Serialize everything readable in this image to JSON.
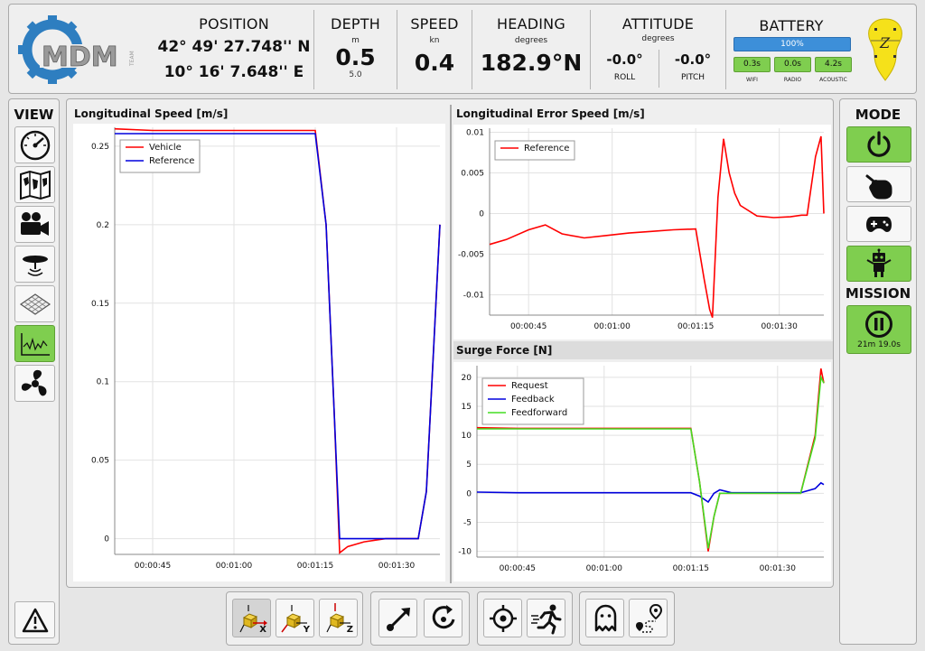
{
  "header": {
    "position": {
      "title": "POSITION",
      "lat": "42° 49' 27.748'' N",
      "lon": "10° 16' 7.648'' E"
    },
    "depth": {
      "title": "DEPTH",
      "unit": "m",
      "value": "0.5",
      "sub": "5.0"
    },
    "speed": {
      "title": "SPEED",
      "unit": "kn",
      "value": "0.4"
    },
    "heading": {
      "title": "HEADING",
      "unit": "degrees",
      "value": "182.9°N"
    },
    "attitude": {
      "title": "ATTITUDE",
      "unit": "degrees",
      "roll_value": "-0.0°",
      "roll_label": "ROLL",
      "pitch_value": "-0.0°",
      "pitch_label": "PITCH"
    },
    "battery": {
      "title": "BATTERY",
      "percent_label": "100%",
      "level": 1.0,
      "comms": [
        {
          "value": "0.3s",
          "label": "WIFI"
        },
        {
          "value": "0.0s",
          "label": "RADIO"
        },
        {
          "value": "4.2s",
          "label": "ACOUSTIC"
        }
      ]
    },
    "logo_text": "MDM",
    "logo_subtext": "TEAM"
  },
  "left_panel": {
    "title": "VIEW",
    "buttons": [
      {
        "icon": "speedometer-icon",
        "active": false
      },
      {
        "icon": "map-icon",
        "active": false
      },
      {
        "icon": "video-camera-icon",
        "active": false
      },
      {
        "icon": "sonar-icon",
        "active": false
      },
      {
        "icon": "terrain-grid-icon",
        "active": false
      },
      {
        "icon": "chart-icon",
        "active": true
      },
      {
        "icon": "propeller-icon",
        "active": false
      }
    ],
    "alert_icon": "warning-icon"
  },
  "right_panel": {
    "mode_title": "MODE",
    "mode_buttons": [
      {
        "icon": "power-icon",
        "active": true
      },
      {
        "icon": "hand-icon",
        "active": false
      },
      {
        "icon": "gamepad-icon",
        "active": false
      },
      {
        "icon": "robot-icon",
        "active": true
      }
    ],
    "mission_title": "MISSION",
    "mission_time": "21m 19.0s"
  },
  "charts": {
    "long_speed_title": "Longitudinal Speed [m/s]",
    "long_error_title": "Longitudinal Error Speed [m/s]",
    "surge_title": "Surge Force [N]"
  },
  "chart_data": [
    {
      "type": "line",
      "title": "Longitudinal Speed [m/s]",
      "x_ticks": [
        "00:00:45",
        "00:01:00",
        "00:01:15",
        "00:01:30"
      ],
      "y_ticks": [
        "0",
        "0.05",
        "0.1",
        "0.15",
        "0.2",
        "0.25"
      ],
      "ylim": [
        -0.01,
        0.262
      ],
      "xlim": [
        38,
        98
      ],
      "series": [
        {
          "name": "Vehicle",
          "color": "#ff0000",
          "x": [
            38,
            45,
            55,
            65,
            75,
            77,
            78.5,
            79.5,
            81,
            84,
            88,
            92,
            94,
            95.5,
            98
          ],
          "y": [
            0.261,
            0.26,
            0.26,
            0.26,
            0.26,
            0.2,
            0.08,
            -0.009,
            -0.005,
            -0.002,
            0,
            0,
            0,
            0.03,
            0.2
          ]
        },
        {
          "name": "Reference",
          "color": "#0000dd",
          "x": [
            38,
            45,
            55,
            65,
            75,
            77,
            78.5,
            79.5,
            81,
            84,
            88,
            92,
            94,
            95.5,
            98
          ],
          "y": [
            0.258,
            0.258,
            0.258,
            0.258,
            0.258,
            0.2,
            0.08,
            0.0,
            0.0,
            0.0,
            0.0,
            0.0,
            0.0,
            0.03,
            0.2
          ]
        }
      ]
    },
    {
      "type": "line",
      "title": "Longitudinal Error Speed [m/s]",
      "x_ticks": [
        "00:00:45",
        "00:01:00",
        "00:01:15",
        "00:01:30"
      ],
      "y_ticks": [
        "-0.01",
        "-0.005",
        "0",
        "0.005",
        "0.01"
      ],
      "ylim": [
        -0.0125,
        0.0105
      ],
      "xlim": [
        38,
        98
      ],
      "series": [
        {
          "name": "Reference",
          "color": "#ff0000",
          "x": [
            38,
            41,
            45,
            48,
            51,
            55,
            59,
            63,
            67,
            71,
            75,
            76.5,
            77.5,
            78,
            79,
            80,
            81,
            82,
            83,
            86,
            89,
            92,
            94,
            95,
            96.5,
            97.5,
            98
          ],
          "y": [
            -0.0038,
            -0.0032,
            -0.002,
            -0.0014,
            -0.0025,
            -0.003,
            -0.0027,
            -0.0024,
            -0.0022,
            -0.002,
            -0.0019,
            -0.008,
            -0.0118,
            -0.0128,
            0.002,
            0.0092,
            0.005,
            0.0025,
            0.001,
            -0.0003,
            -0.0005,
            -0.0004,
            -0.0002,
            -0.0002,
            0.007,
            0.0095,
            0.0
          ]
        }
      ]
    },
    {
      "type": "line",
      "title": "Surge Force [N]",
      "x_ticks": [
        "00:00:45",
        "00:01:00",
        "00:01:15",
        "00:01:30"
      ],
      "y_ticks": [
        "-10",
        "-5",
        "0",
        "5",
        "10",
        "15",
        "20"
      ],
      "ylim": [
        -11,
        22
      ],
      "xlim": [
        38,
        98
      ],
      "series": [
        {
          "name": "Request",
          "color": "#ff0000",
          "x": [
            38,
            45,
            55,
            65,
            75,
            76.5,
            78,
            79,
            80,
            82,
            86,
            92,
            94,
            96.5,
            97.5,
            98
          ],
          "y": [
            11.3,
            11.2,
            11.2,
            11.2,
            11.2,
            2,
            -10,
            -4,
            0,
            0,
            0,
            0,
            0,
            10,
            21.5,
            19
          ]
        },
        {
          "name": "Feedback",
          "color": "#0000dd",
          "x": [
            38,
            45,
            55,
            65,
            75,
            76.5,
            78,
            79,
            80,
            82,
            86,
            92,
            94,
            96.5,
            97.5,
            98
          ],
          "y": [
            0.2,
            0.1,
            0.1,
            0.1,
            0.1,
            -0.5,
            -1.5,
            0,
            0.6,
            0.1,
            0.1,
            0.1,
            0.1,
            0.8,
            1.8,
            1.5
          ]
        },
        {
          "name": "Feedforward",
          "color": "#44dd22",
          "x": [
            38,
            45,
            55,
            65,
            75,
            76.5,
            78,
            79,
            80,
            82,
            86,
            92,
            94,
            96.5,
            97.5,
            98
          ],
          "y": [
            11.1,
            11.1,
            11.1,
            11.1,
            11.1,
            2,
            -9.5,
            -4,
            0,
            0,
            0,
            0,
            0,
            9.5,
            20,
            19
          ]
        }
      ]
    }
  ],
  "toolbar": {
    "axis_labels": [
      "X",
      "Y",
      "Z"
    ],
    "buttons": [
      "move-x-icon",
      "move-y-icon",
      "move-z-icon",
      "arrow-icon",
      "rotate-icon",
      "crosshair-icon",
      "running-icon",
      "ghost-icon",
      "route-icon"
    ]
  }
}
